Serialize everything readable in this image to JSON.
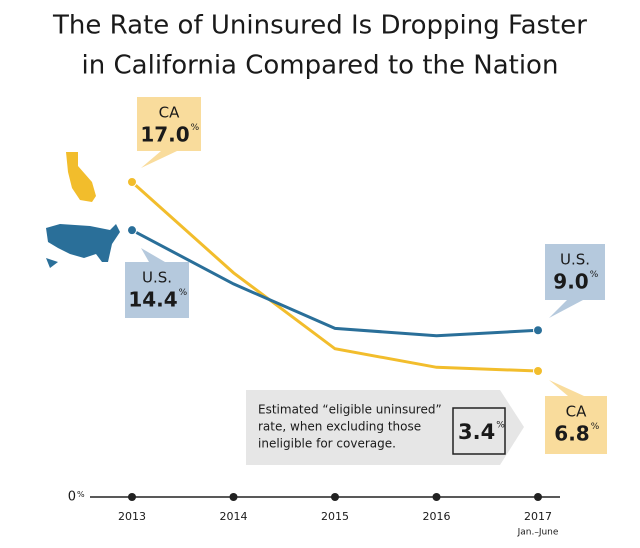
{
  "chart_data": {
    "type": "line",
    "title": [
      "The Rate of Uninsured Is Dropping Faster",
      "in California Compared to the Nation"
    ],
    "categories": [
      "2013",
      "2014",
      "2015",
      "2016",
      "2017"
    ],
    "category_notes": [
      null,
      null,
      null,
      null,
      "Jan.–June"
    ],
    "series": [
      {
        "name": "CA",
        "color": "#f2bd2c",
        "label_color": "#f9dc9c",
        "values": [
          17.0,
          12.1,
          8.0,
          7.0,
          6.8
        ],
        "value_labels": [
          "17.0",
          null,
          null,
          null,
          "6.8"
        ]
      },
      {
        "name": "U.S.",
        "color": "#2a6f99",
        "label_color": "#b5c9dd",
        "values": [
          14.4,
          11.5,
          9.1,
          8.7,
          9.0
        ],
        "value_labels": [
          "14.4",
          null,
          null,
          null,
          "9.0"
        ]
      }
    ],
    "unit": "%",
    "ylim": [
      0,
      17.0
    ],
    "yticks": [
      0
    ],
    "annotation": {
      "lines": [
        "Estimated “eligible uninsured”",
        "rate, when excluding those",
        "ineligible for coverage."
      ],
      "value": 3.4
    }
  }
}
